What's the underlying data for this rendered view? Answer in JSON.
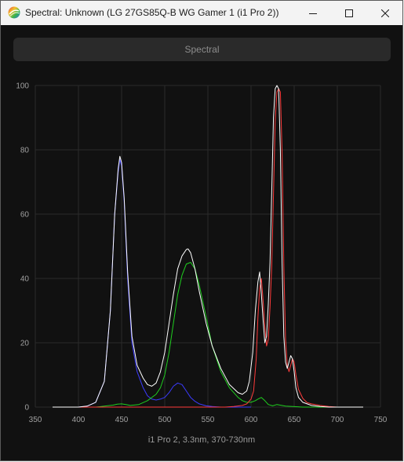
{
  "window": {
    "title": "Spectral: Unknown (LG 27GS85Q-B WG Gamer 1 (i1 Pro 2))"
  },
  "button": {
    "spectral_label": "Spectral"
  },
  "caption": "i1 Pro 2, 3.3nm, 370-730nm",
  "chart_data": {
    "type": "line",
    "title": "",
    "xlabel": "",
    "ylabel": "",
    "xlim": [
      350,
      750
    ],
    "ylim": [
      0,
      100
    ],
    "xticks": [
      350,
      400,
      450,
      500,
      550,
      600,
      650,
      700,
      750
    ],
    "yticks": [
      0,
      20,
      40,
      60,
      80,
      100
    ],
    "grid": true,
    "series": [
      {
        "color": "#ffffff",
        "x": [
          370,
          400,
          410,
          420,
          430,
          437,
          442,
          446,
          448,
          450,
          453,
          457,
          462,
          468,
          475,
          480,
          485,
          490,
          495,
          500,
          505,
          510,
          515,
          520,
          525,
          527,
          530,
          535,
          540,
          548,
          555,
          565,
          575,
          585,
          590,
          595,
          598,
          602,
          605,
          608,
          610,
          612,
          614,
          616,
          618,
          620,
          622,
          624,
          626,
          628,
          630,
          632,
          634,
          636,
          638,
          640,
          642,
          644,
          646,
          648,
          650,
          652,
          655,
          660,
          665,
          670,
          680,
          690,
          700,
          720,
          730
        ],
        "y": [
          0,
          0,
          0.3,
          1.5,
          8,
          30,
          60,
          74,
          78,
          76,
          65,
          42,
          22,
          13,
          9,
          7,
          6.5,
          7.5,
          11,
          17,
          26,
          35,
          43,
          47,
          49,
          49.2,
          48,
          43,
          36,
          26,
          19,
          12,
          7,
          4.5,
          4,
          5,
          8,
          17,
          30,
          39,
          42,
          35,
          27,
          20,
          22,
          32,
          45,
          67,
          90,
          99,
          100,
          99,
          80,
          45,
          22,
          14,
          12,
          14,
          16,
          15,
          11,
          6,
          3,
          1.5,
          1,
          0.5,
          0.2,
          0,
          0,
          0,
          0
        ]
      },
      {
        "color": "#3b3bff",
        "x": [
          370,
          400,
          410,
          420,
          430,
          437,
          442,
          446,
          448,
          450,
          453,
          457,
          462,
          468,
          475,
          480,
          485,
          490,
          495,
          500,
          505,
          510,
          515,
          520,
          525,
          530,
          535,
          540,
          548,
          555,
          565,
          580,
          600
        ],
        "y": [
          0,
          0,
          0.3,
          1.5,
          8,
          30,
          60,
          73,
          77,
          75,
          64,
          40,
          20,
          11,
          6,
          3.5,
          2.5,
          2.2,
          2.5,
          3,
          4.5,
          6.5,
          7.5,
          7,
          5,
          3,
          1.8,
          1,
          0.4,
          0.2,
          0,
          0,
          0
        ]
      },
      {
        "color": "#1fcf1f",
        "x": [
          370,
          420,
          430,
          440,
          445,
          450,
          455,
          460,
          470,
          480,
          490,
          495,
          500,
          505,
          510,
          515,
          520,
          525,
          530,
          535,
          540,
          548,
          555,
          565,
          575,
          585,
          590,
          595,
          600,
          605,
          608,
          612,
          616,
          620,
          625,
          630,
          640,
          660,
          700,
          730
        ],
        "y": [
          0,
          0,
          0.3,
          0.6,
          0.9,
          1,
          0.8,
          0.5,
          0.8,
          2,
          4,
          6,
          10,
          17,
          26,
          35,
          41,
          44.5,
          45,
          43,
          38,
          28,
          19,
          11,
          6,
          3,
          2,
          1.5,
          1.5,
          2,
          2.5,
          3,
          2,
          0.8,
          0.4,
          0.8,
          0.3,
          0,
          0,
          0
        ]
      },
      {
        "color": "#ff3c3c",
        "x": [
          370,
          570,
          580,
          590,
          595,
          600,
          603,
          606,
          608,
          610,
          612,
          614,
          616,
          618,
          620,
          622,
          624,
          626,
          628,
          630,
          632,
          634,
          636,
          638,
          640,
          642,
          644,
          646,
          648,
          650,
          652,
          655,
          660,
          665,
          670,
          680,
          690,
          700,
          720,
          730
        ],
        "y": [
          0,
          0,
          0.2,
          0.5,
          1,
          2.5,
          5,
          15,
          28,
          37,
          40,
          33,
          25,
          19,
          21,
          31,
          44,
          66,
          89,
          98,
          99,
          98,
          79,
          44,
          21,
          13,
          11,
          13,
          15,
          14,
          10,
          5.5,
          2.7,
          1.4,
          1,
          0.5,
          0.2,
          0,
          0,
          0
        ]
      }
    ]
  }
}
